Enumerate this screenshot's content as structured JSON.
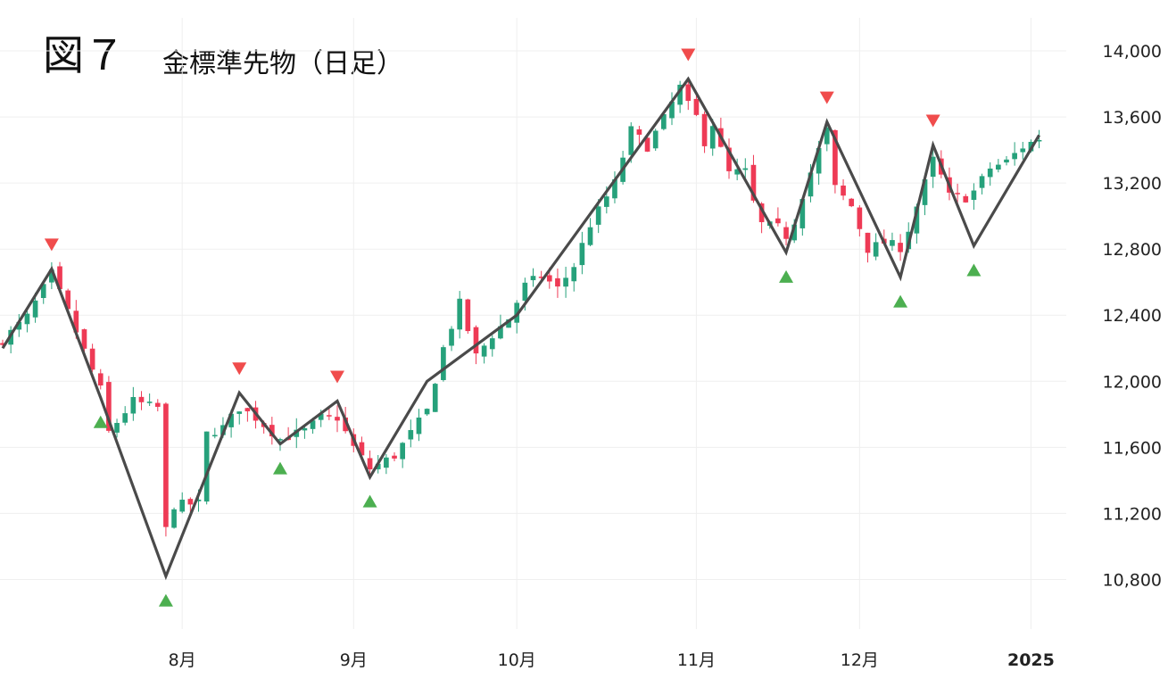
{
  "figure": {
    "label": "図７",
    "title": "金標準先物（日足）"
  },
  "colors": {
    "up": "#26a17b",
    "down": "#ee3a55",
    "zigzag": "#4a4a4a",
    "peak_marker": "#f04c4c",
    "trough_marker": "#4caf50",
    "grid": "#efefef"
  },
  "chart_data": {
    "type": "candlestick",
    "title": "金標準先物（日足）",
    "ylim": [
      10500,
      14200
    ],
    "y_ticks": [
      10800,
      11200,
      11600,
      12000,
      12400,
      12800,
      13200,
      13600,
      14000
    ],
    "y_tick_labels": [
      "10,800",
      "11,200",
      "11,600",
      "12,000",
      "12,400",
      "12,800",
      "13,200",
      "13,600",
      "14,000"
    ],
    "x_axis": {
      "type": "trading-days",
      "range": [
        0,
        125
      ],
      "ticks": [
        {
          "index": 22,
          "label": "8月",
          "bold": false
        },
        {
          "index": 43,
          "label": "9月",
          "bold": false
        },
        {
          "index": 63,
          "label": "10月",
          "bold": false
        },
        {
          "index": 85,
          "label": "11月",
          "bold": false
        },
        {
          "index": 105,
          "label": "12月",
          "bold": false
        },
        {
          "index": 126,
          "label": "2025",
          "bold": true
        }
      ]
    },
    "grid": true,
    "zigzag": [
      [
        0,
        12200
      ],
      [
        6,
        12680
      ],
      [
        12,
        11900
      ],
      [
        20,
        10820
      ],
      [
        29,
        11930
      ],
      [
        34,
        11620
      ],
      [
        41,
        11880
      ],
      [
        45,
        11420
      ],
      [
        52,
        12000
      ],
      [
        63,
        12400
      ],
      [
        84,
        13830
      ],
      [
        96,
        12780
      ],
      [
        101,
        13570
      ],
      [
        110,
        12630
      ],
      [
        114,
        13430
      ],
      [
        119,
        12820
      ],
      [
        127,
        13490
      ]
    ],
    "peaks": [
      6,
      29,
      41,
      84,
      101,
      114
    ],
    "troughs": [
      12,
      20,
      34,
      45,
      96,
      110,
      119
    ],
    "anchors": [
      [
        0,
        12250
      ],
      [
        3,
        12390
      ],
      [
        6,
        12650
      ],
      [
        12,
        11950
      ],
      [
        13,
        11690
      ],
      [
        16,
        11880
      ],
      [
        18,
        11850
      ],
      [
        19,
        11840
      ],
      [
        20,
        11100
      ],
      [
        21,
        11250
      ],
      [
        24,
        11260
      ],
      [
        25,
        11680
      ],
      [
        27,
        11720
      ],
      [
        29,
        11840
      ],
      [
        31,
        11780
      ],
      [
        34,
        11650
      ],
      [
        37,
        11700
      ],
      [
        39,
        11780
      ],
      [
        41,
        11780
      ],
      [
        43,
        11600
      ],
      [
        45,
        11470
      ],
      [
        48,
        11550
      ],
      [
        52,
        11820
      ],
      [
        54,
        12200
      ],
      [
        56,
        12470
      ],
      [
        58,
        12150
      ],
      [
        60,
        12280
      ],
      [
        62,
        12380
      ],
      [
        64,
        12580
      ],
      [
        66,
        12640
      ],
      [
        68,
        12560
      ],
      [
        70,
        12700
      ],
      [
        72,
        12950
      ],
      [
        75,
        13200
      ],
      [
        77,
        13520
      ],
      [
        79,
        13420
      ],
      [
        81,
        13590
      ],
      [
        83,
        13780
      ],
      [
        84,
        13670
      ],
      [
        85,
        13600
      ],
      [
        86,
        13450
      ],
      [
        87,
        13560
      ],
      [
        88,
        13400
      ],
      [
        89,
        13260
      ],
      [
        91,
        13270
      ],
      [
        92,
        13080
      ],
      [
        93,
        12950
      ],
      [
        95,
        12930
      ],
      [
        96,
        12880
      ],
      [
        97,
        12970
      ],
      [
        98,
        13130
      ],
      [
        100,
        13400
      ],
      [
        101,
        13520
      ],
      [
        102,
        13170
      ],
      [
        104,
        13060
      ],
      [
        106,
        12800
      ],
      [
        108,
        12840
      ],
      [
        110,
        12810
      ],
      [
        111,
        12920
      ],
      [
        113,
        13200
      ],
      [
        114,
        13340
      ],
      [
        115,
        13240
      ],
      [
        116,
        13120
      ],
      [
        118,
        13110
      ],
      [
        119,
        13150
      ],
      [
        121,
        13290
      ],
      [
        123,
        13330
      ],
      [
        125,
        13420
      ],
      [
        127,
        13470
      ]
    ]
  }
}
